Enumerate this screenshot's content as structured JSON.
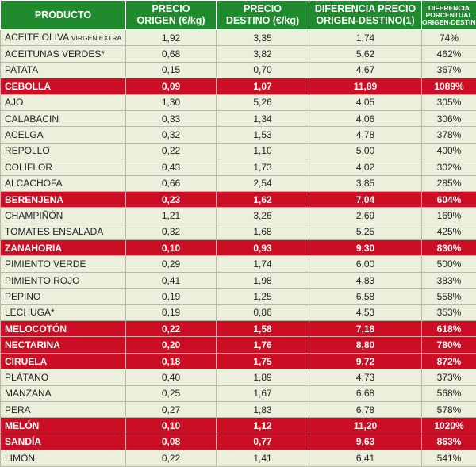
{
  "header": {
    "product": "PRODUCTO",
    "origin": [
      "PRECIO",
      "ORIGEN (€/kg)"
    ],
    "dest": [
      "PRECIO",
      "DESTINO (€/kg)"
    ],
    "diff": [
      "DIFERENCIA PRECIO",
      "ORIGEN-DESTINO(1)"
    ],
    "pct": [
      "DIFERENCIA",
      "PORCENTUAL",
      "ORIGEN-DESTINO"
    ]
  },
  "colors": {
    "header_green": "#1f8a2e",
    "highlight_red": "#cc0e24",
    "row_bg": "#ecefdc"
  },
  "rows": [
    {
      "name": "ACEITE OLIVA",
      "note": "VIRGEN EXTRA",
      "origin": "1,92",
      "dest": "3,35",
      "diff": "1,74",
      "pct": "74%",
      "hl": false
    },
    {
      "name": "ACEITUNAS VERDES*",
      "note": "",
      "origin": "0,68",
      "dest": "3,82",
      "diff": "5,62",
      "pct": "462%",
      "hl": false
    },
    {
      "name": "PATATA",
      "note": "",
      "origin": "0,15",
      "dest": "0,70",
      "diff": "4,67",
      "pct": "367%",
      "hl": false
    },
    {
      "name": "CEBOLLA",
      "note": "",
      "origin": "0,09",
      "dest": "1,07",
      "diff": "11,89",
      "pct": "1089%",
      "hl": true
    },
    {
      "name": "AJO",
      "note": "",
      "origin": "1,30",
      "dest": "5,26",
      "diff": "4,05",
      "pct": "305%",
      "hl": false
    },
    {
      "name": "CALABACIN",
      "note": "",
      "origin": "0,33",
      "dest": "1,34",
      "diff": "4,06",
      "pct": "306%",
      "hl": false
    },
    {
      "name": "ACELGA",
      "note": "",
      "origin": "0,32",
      "dest": "1,53",
      "diff": "4,78",
      "pct": "378%",
      "hl": false
    },
    {
      "name": "REPOLLO",
      "note": "",
      "origin": "0,22",
      "dest": "1,10",
      "diff": "5,00",
      "pct": "400%",
      "hl": false
    },
    {
      "name": "COLIFLOR",
      "note": "",
      "origin": "0,43",
      "dest": "1,73",
      "diff": "4,02",
      "pct": "302%",
      "hl": false
    },
    {
      "name": "ALCACHOFA",
      "note": "",
      "origin": "0,66",
      "dest": "2,54",
      "diff": "3,85",
      "pct": "285%",
      "hl": false
    },
    {
      "name": "BERENJENA",
      "note": "",
      "origin": "0,23",
      "dest": "1,62",
      "diff": "7,04",
      "pct": "604%",
      "hl": true
    },
    {
      "name": "CHAMPIÑÓN",
      "note": "",
      "origin": "1,21",
      "dest": "3,26",
      "diff": "2,69",
      "pct": "169%",
      "hl": false
    },
    {
      "name": "TOMATES ENSALADA",
      "note": "",
      "origin": "0,32",
      "dest": "1,68",
      "diff": "5,25",
      "pct": "425%",
      "hl": false
    },
    {
      "name": "ZANAHORIA",
      "note": "",
      "origin": "0,10",
      "dest": "0,93",
      "diff": "9,30",
      "pct": "830%",
      "hl": true
    },
    {
      "name": "PIMIENTO VERDE",
      "note": "",
      "origin": "0,29",
      "dest": "1,74",
      "diff": "6,00",
      "pct": "500%",
      "hl": false
    },
    {
      "name": "PIMIENTO ROJO",
      "note": "",
      "origin": "0,41",
      "dest": "1,98",
      "diff": "4,83",
      "pct": "383%",
      "hl": false
    },
    {
      "name": "PEPINO",
      "note": "",
      "origin": "0,19",
      "dest": "1,25",
      "diff": "6,58",
      "pct": "558%",
      "hl": false
    },
    {
      "name": "LECHUGA*",
      "note": "",
      "origin": "0,19",
      "dest": "0,86",
      "diff": "4,53",
      "pct": "353%",
      "hl": false
    },
    {
      "name": "MELOCOTÓN",
      "note": "",
      "origin": "0,22",
      "dest": "1,58",
      "diff": "7,18",
      "pct": "618%",
      "hl": true
    },
    {
      "name": "NECTARINA",
      "note": "",
      "origin": "0,20",
      "dest": "1,76",
      "diff": "8,80",
      "pct": "780%",
      "hl": true
    },
    {
      "name": "CIRUELA",
      "note": "",
      "origin": "0,18",
      "dest": "1,75",
      "diff": "9,72",
      "pct": "872%",
      "hl": true
    },
    {
      "name": "PLÁTANO",
      "note": "",
      "origin": "0,40",
      "dest": "1,89",
      "diff": "4,73",
      "pct": "373%",
      "hl": false
    },
    {
      "name": "MANZANA",
      "note": "",
      "origin": "0,25",
      "dest": "1,67",
      "diff": "6,68",
      "pct": "568%",
      "hl": false
    },
    {
      "name": "PERA",
      "note": "",
      "origin": "0,27",
      "dest": "1,83",
      "diff": "6,78",
      "pct": "578%",
      "hl": false
    },
    {
      "name": "MELÓN",
      "note": "",
      "origin": "0,10",
      "dest": "1,12",
      "diff": "11,20",
      "pct": "1020%",
      "hl": true
    },
    {
      "name": "SANDÍA",
      "note": "",
      "origin": "0,08",
      "dest": "0,77",
      "diff": "9,63",
      "pct": "863%",
      "hl": true
    },
    {
      "name": "LIMÓN",
      "note": "",
      "origin": "0,22",
      "dest": "1,41",
      "diff": "6,41",
      "pct": "541%",
      "hl": false
    }
  ]
}
